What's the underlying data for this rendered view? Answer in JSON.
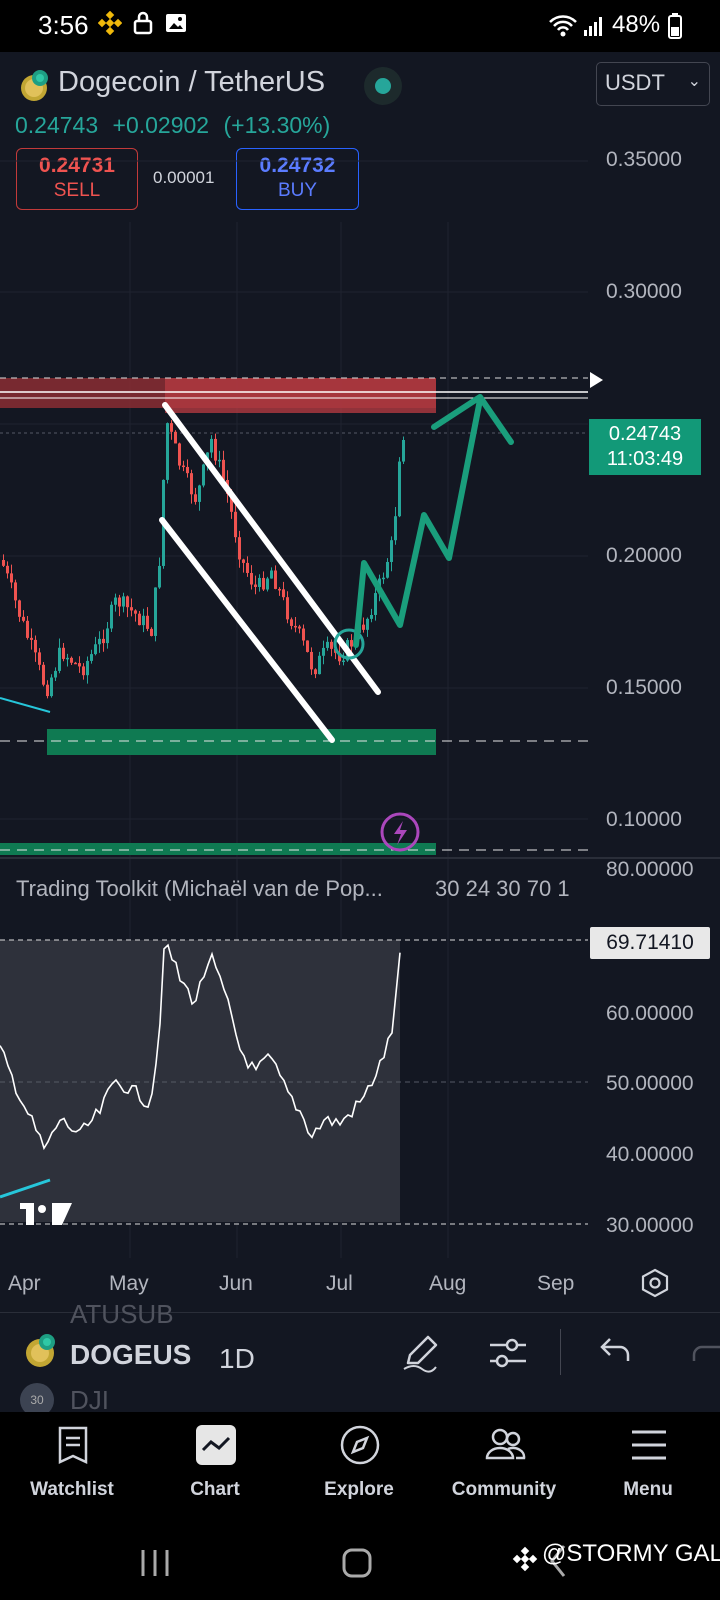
{
  "status_bar": {
    "time": "3:56",
    "battery": "48%"
  },
  "header": {
    "symbol": "Dogecoin / TetherUS",
    "last_price": "0.24743",
    "change": "+0.02902",
    "change_pct": "(+13.30%)",
    "currency": "USDT",
    "sell_price": "0.24731",
    "sell_label": "SELL",
    "spread": "0.00001",
    "buy_price": "0.24732",
    "buy_label": "BUY"
  },
  "price_axis": [
    "0.35000",
    "0.30000",
    "0.20000",
    "0.15000",
    "0.10000"
  ],
  "last_price_tag": {
    "price": "0.24743",
    "countdown": "11:03:49"
  },
  "indicator": {
    "name": "Trading Toolkit (Michaël van de Pop...",
    "params": "30 24 30 70 1",
    "axis": [
      "80.00000",
      "60.00000",
      "50.00000",
      "40.00000",
      "30.00000"
    ],
    "value": "69.71410"
  },
  "time_axis": [
    "Apr",
    "May",
    "Jun",
    "Jul",
    "Aug",
    "Sep"
  ],
  "symbol_bar": {
    "above": "ATUSUB",
    "symbol": "DOGEUS",
    "below": "DJI",
    "interval": "1D"
  },
  "bottom_nav": [
    {
      "label": "Watchlist",
      "icon": "watchlist-icon"
    },
    {
      "label": "Chart",
      "icon": "chart-icon"
    },
    {
      "label": "Explore",
      "icon": "compass-icon"
    },
    {
      "label": "Community",
      "icon": "community-icon"
    },
    {
      "label": "Menu",
      "icon": "hamburger-icon"
    }
  ],
  "watermark": "@STORMY GAL",
  "colors": {
    "up": "#26a69a",
    "down": "#ef5350",
    "background": "#131722",
    "accent": "#129978"
  }
}
